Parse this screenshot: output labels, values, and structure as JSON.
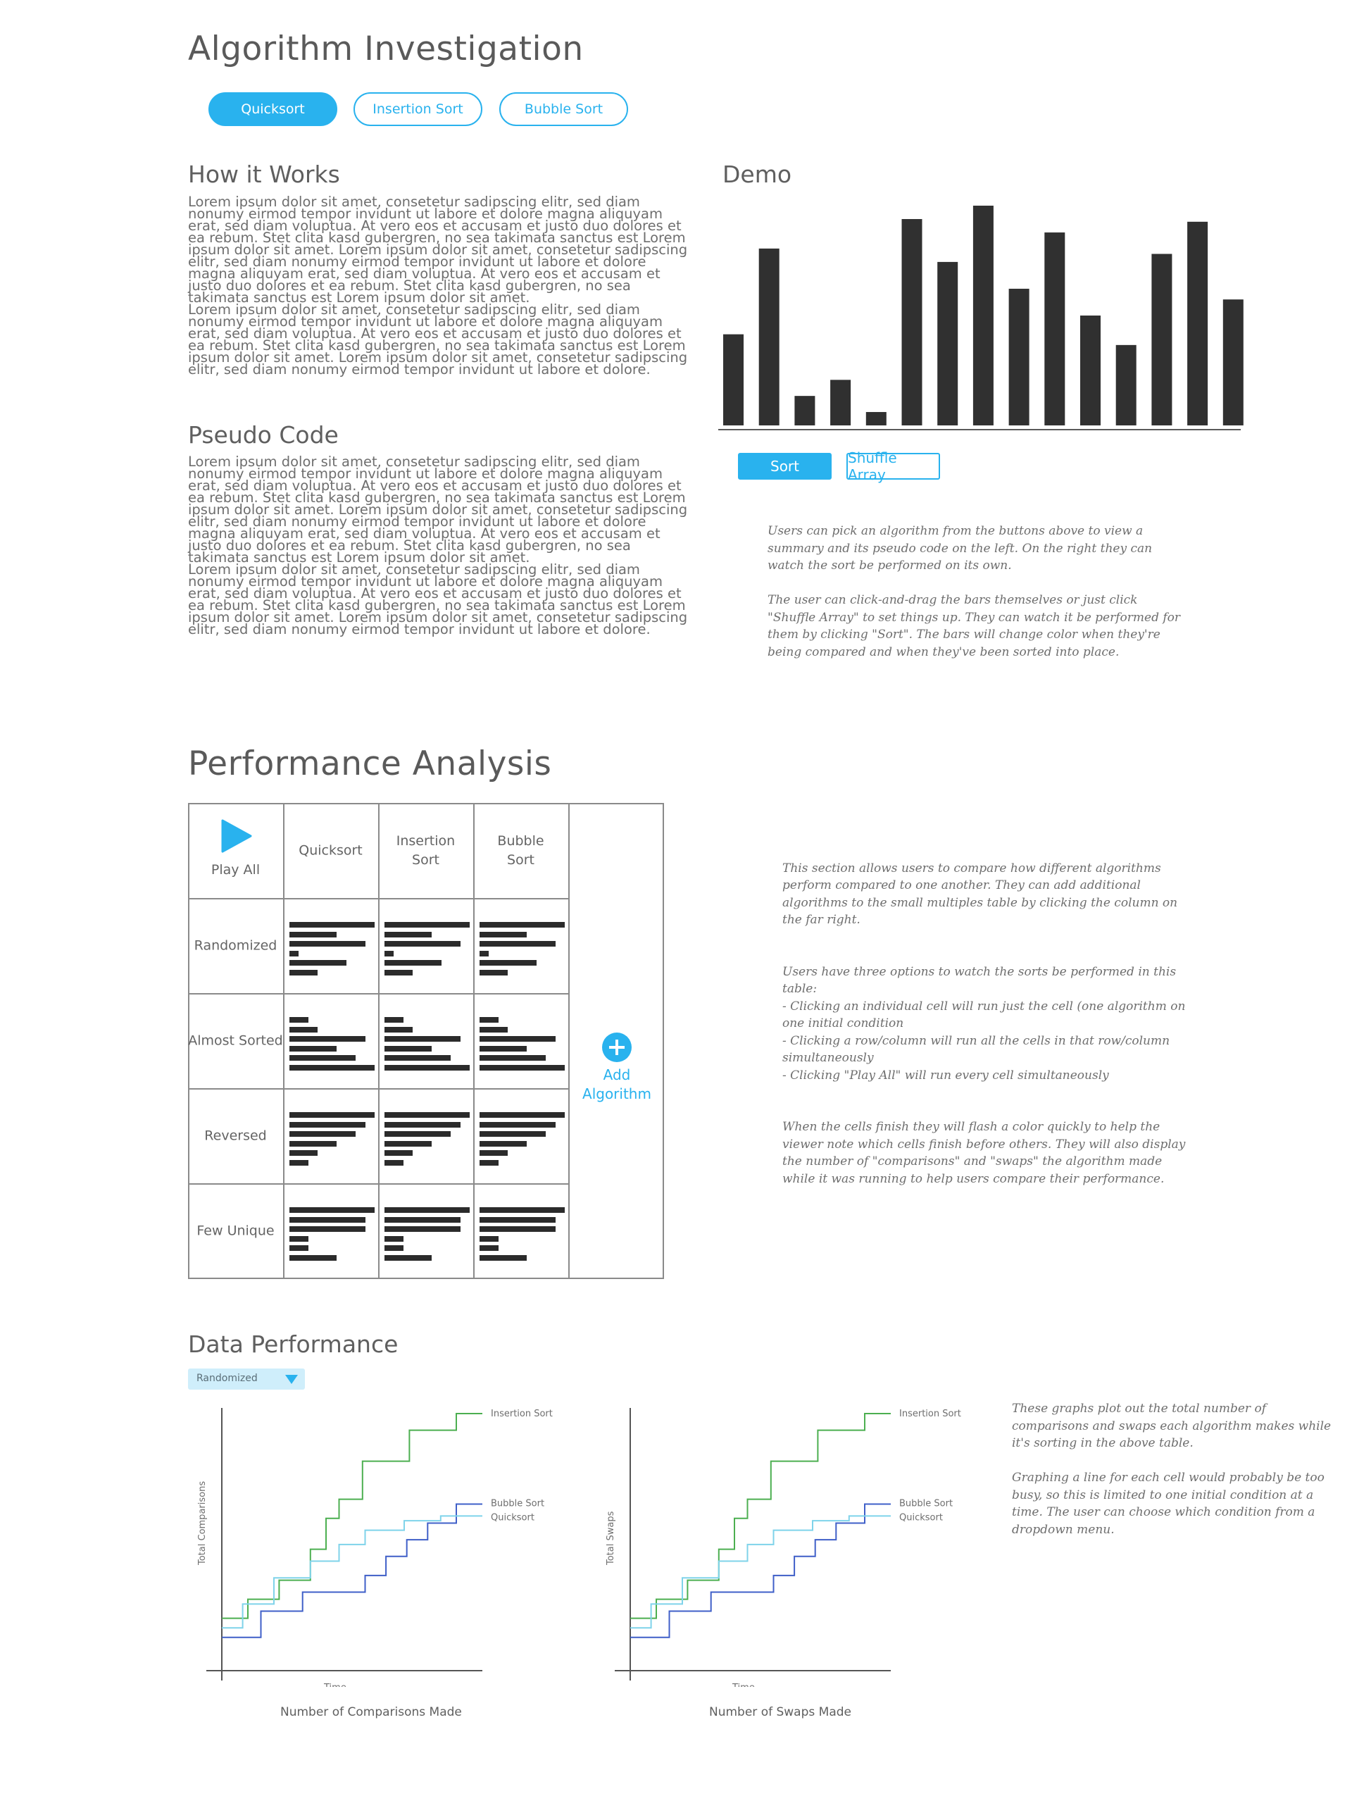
{
  "header": {
    "title": "Algorithm Investigation",
    "tabs": [
      {
        "label": "Quicksort",
        "active": true
      },
      {
        "label": "Insertion Sort",
        "active": false
      },
      {
        "label": "Bubble Sort",
        "active": false
      }
    ]
  },
  "how_it_works": {
    "heading": "How it Works",
    "lines": [
      "Lorem ipsum dolor sit amet, consetetur sadipscing elitr, sed diam",
      "nonumy eirmod tempor invidunt ut labore et dolore magna aliquyam",
      "erat, sed diam voluptua. At vero eos et accusam et justo duo dolores et",
      "ea rebum. Stet clita kasd gubergren, no sea takimata sanctus est Lorem",
      "ipsum dolor sit amet. Lorem ipsum dolor sit amet, consetetur sadipscing",
      "elitr, sed diam nonumy eirmod tempor invidunt ut labore et dolore",
      "magna aliquyam erat, sed diam voluptua. At vero eos et accusam et",
      "justo duo dolores et ea rebum. Stet clita kasd gubergren, no sea",
      "takimata sanctus est Lorem ipsum dolor sit amet.",
      "Lorem ipsum dolor sit amet, consetetur sadipscing elitr, sed diam",
      "nonumy eirmod tempor invidunt ut labore et dolore magna aliquyam",
      "erat, sed diam voluptua. At vero eos et accusam et justo duo dolores et",
      "ea rebum. Stet clita kasd gubergren, no sea takimata sanctus est Lorem",
      "ipsum dolor sit amet. Lorem ipsum dolor sit amet, consetetur sadipscing",
      "elitr, sed diam nonumy eirmod tempor invidunt ut labore et dolore."
    ]
  },
  "pseudo_code": {
    "heading": "Pseudo Code",
    "lines": [
      "Lorem ipsum dolor sit amet, consetetur sadipscing elitr, sed diam",
      "nonumy eirmod tempor invidunt ut labore et dolore magna aliquyam",
      "erat, sed diam voluptua. At vero eos et accusam et justo duo dolores et",
      "ea rebum. Stet clita kasd gubergren, no sea takimata sanctus est Lorem",
      "ipsum dolor sit amet. Lorem ipsum dolor sit amet, consetetur sadipscing",
      "elitr, sed diam nonumy eirmod tempor invidunt ut labore et dolore",
      "magna aliquyam erat, sed diam voluptua. At vero eos et accusam et",
      "justo duo dolores et ea rebum. Stet clita kasd gubergren, no sea",
      "takimata sanctus est Lorem ipsum dolor sit amet.",
      "Lorem ipsum dolor sit amet, consetetur sadipscing elitr, sed diam",
      "nonumy eirmod tempor invidunt ut labore et dolore magna aliquyam",
      "erat, sed diam voluptua. At vero eos et accusam et justo duo dolores et",
      "ea rebum. Stet clita kasd gubergren, no sea takimata sanctus est Lorem",
      "ipsum dolor sit amet. Lorem ipsum dolor sit amet, consetetur sadipscing",
      "elitr, sed diam nonumy eirmod tempor invidunt ut labore et dolore."
    ]
  },
  "demo": {
    "heading": "Demo",
    "bars": [
      34,
      66,
      11,
      17,
      5,
      77,
      61,
      82,
      51,
      72,
      41,
      30,
      64,
      76,
      47
    ],
    "sort_label": "Sort",
    "shuffle_label": "Shuffle Array",
    "notes": [
      "Users can pick an algorithm from the buttons above to view a summary and its pseudo code on the left. On the right they can watch the sort be performed on its own.",
      "The user can click-and-drag the bars themselves or just click \"Shuffle Array\" to set things up. They can watch it be performed for them by clicking \"Sort\". The bars will change color when they're being compared and when they've been sorted into place."
    ]
  },
  "performance": {
    "heading": "Performance Analysis",
    "play_all": "Play All",
    "columns": [
      "Quicksort",
      "Insertion Sort",
      "Bubble Sort"
    ],
    "rows": [
      "Randomized",
      "Almost Sorted",
      "Reversed",
      "Few Unique"
    ],
    "add_label": "Add Algorithm",
    "mini_bars": {
      "Randomized": [
        9,
        5,
        8,
        1,
        6,
        3
      ],
      "Almost Sorted": [
        2,
        3,
        8,
        5,
        7,
        9
      ],
      "Reversed": [
        9,
        8,
        7,
        5,
        3,
        2
      ],
      "Few Unique": [
        9,
        8,
        8,
        2,
        2,
        5
      ]
    },
    "notes": [
      "This section allows users to compare how different algorithms perform compared to one another. They can add additional algorithms to the small multiples table by clicking the column on the far right.",
      "Users have three options to watch the sorts be performed in this table:\n- Clicking an individual cell will run just the cell (one algorithm on one initial condition\n- Clicking a row/column will run all the cells in that row/column simultaneously\n- Clicking \"Play All\" will run every cell simultaneously",
      "When the cells finish they will flash a color quickly to help the viewer note which cells finish before others. They will also display the number of \"comparisons\" and \"swaps\" the algorithm made while it was running to help users compare their performance."
    ]
  },
  "data_performance": {
    "heading": "Data Performance",
    "dropdown_value": "Randomized",
    "notes": [
      "These graphs plot out the total number of comparisons and swaps each algorithm makes while it's sorting in the above table.",
      "Graphing a line for each cell would probably be too busy, so this is limited to one initial condition at a time. The user can choose which condition from a dropdown menu."
    ]
  },
  "chart_data": [
    {
      "type": "line",
      "title": "Number of Comparisons Made",
      "xlabel": "Time",
      "ylabel": "Total Comparisons",
      "xlim": [
        0,
        100
      ],
      "ylim": [
        0,
        100
      ],
      "grid": false,
      "series": [
        {
          "name": "Insertion Sort",
          "color": "#4caf50",
          "x": [
            0,
            10,
            10,
            22,
            22,
            34,
            34,
            40,
            40,
            45,
            45,
            54,
            54,
            72,
            72,
            90,
            90,
            100
          ],
          "y": [
            14,
            14,
            22,
            22,
            30,
            30,
            43,
            43,
            56,
            56,
            64,
            64,
            80,
            80,
            93,
            93,
            100,
            100
          ]
        },
        {
          "name": "Bubble Sort",
          "color": "#3f5fc8",
          "x": [
            0,
            15,
            15,
            31,
            31,
            55,
            55,
            63,
            63,
            71,
            71,
            79,
            79,
            90,
            90,
            100
          ],
          "y": [
            6,
            6,
            17,
            17,
            25,
            25,
            32,
            32,
            40,
            40,
            47,
            47,
            54,
            54,
            62,
            62
          ]
        },
        {
          "name": "Quicksort",
          "color": "#7fd3ea",
          "x": [
            0,
            8,
            8,
            20,
            20,
            34,
            34,
            45,
            45,
            55,
            55,
            70,
            70,
            84,
            84,
            100
          ],
          "y": [
            10,
            10,
            20,
            20,
            31,
            31,
            38,
            38,
            45,
            45,
            51,
            51,
            55,
            55,
            57,
            57
          ]
        }
      ]
    },
    {
      "type": "line",
      "title": "Number of Swaps Made",
      "xlabel": "Time",
      "ylabel": "Total Swaps",
      "xlim": [
        0,
        100
      ],
      "ylim": [
        0,
        100
      ],
      "grid": false,
      "series": [
        {
          "name": "Insertion Sort",
          "color": "#4caf50",
          "x": [
            0,
            10,
            10,
            22,
            22,
            34,
            34,
            40,
            40,
            45,
            45,
            54,
            54,
            72,
            72,
            90,
            90,
            100
          ],
          "y": [
            14,
            14,
            22,
            22,
            30,
            30,
            43,
            43,
            56,
            56,
            64,
            64,
            80,
            80,
            93,
            93,
            100,
            100
          ]
        },
        {
          "name": "Bubble Sort",
          "color": "#3f5fc8",
          "x": [
            0,
            15,
            15,
            31,
            31,
            55,
            55,
            63,
            63,
            71,
            71,
            79,
            79,
            90,
            90,
            100
          ],
          "y": [
            6,
            6,
            17,
            17,
            25,
            25,
            32,
            32,
            40,
            40,
            47,
            47,
            54,
            54,
            62,
            62
          ]
        },
        {
          "name": "Quicksort",
          "color": "#7fd3ea",
          "x": [
            0,
            8,
            8,
            20,
            20,
            34,
            34,
            45,
            45,
            55,
            55,
            70,
            70,
            84,
            84,
            100
          ],
          "y": [
            10,
            10,
            20,
            20,
            31,
            31,
            38,
            38,
            45,
            45,
            51,
            51,
            55,
            55,
            57,
            57
          ]
        }
      ]
    }
  ]
}
